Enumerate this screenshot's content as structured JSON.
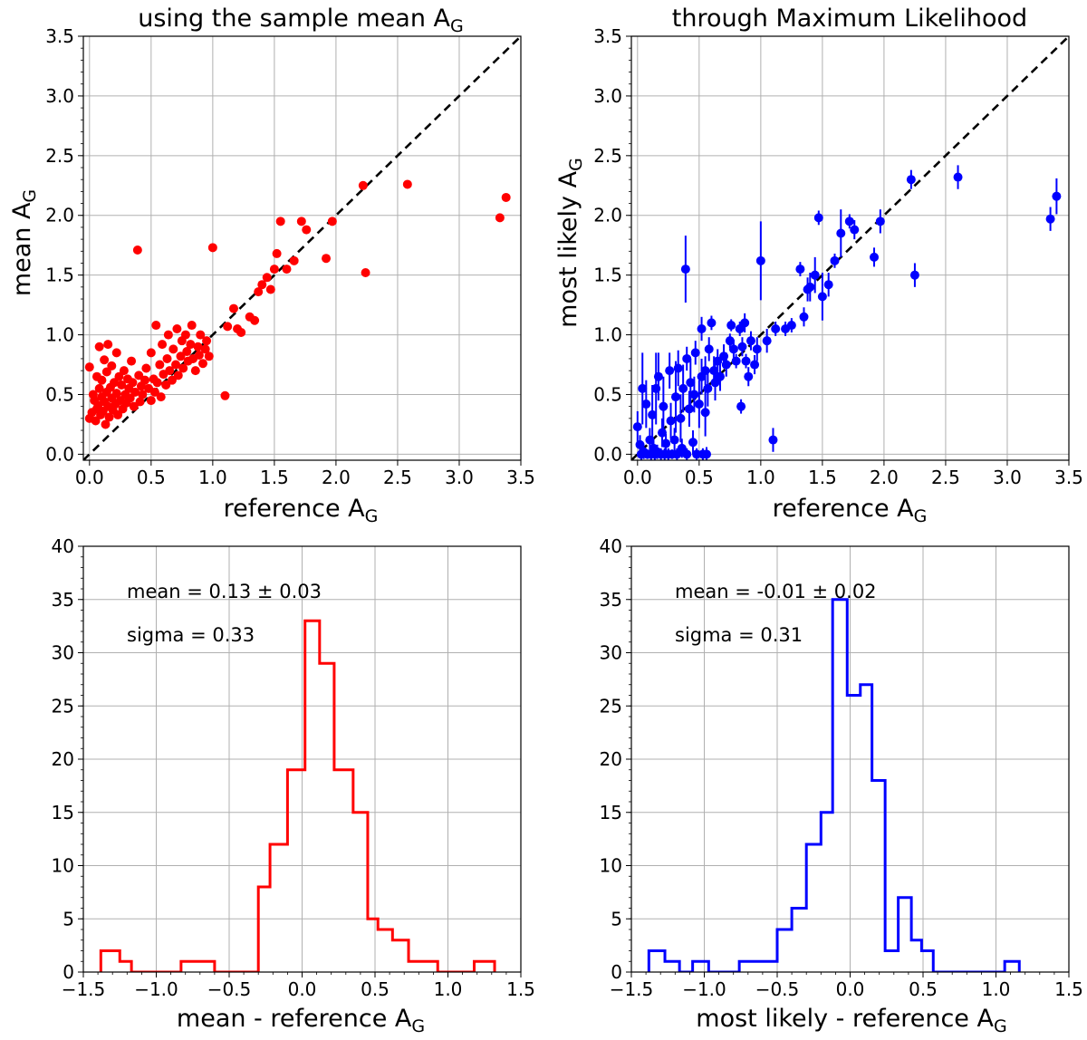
{
  "colors": {
    "red": "#ff0000",
    "blue": "#0000ff",
    "grid": "#b0b0b0"
  },
  "chart_data": [
    {
      "type": "scatter",
      "title": "using the sample mean A",
      "title_sub": "G",
      "xlabel": "reference A",
      "xlabel_sub": "G",
      "ylabel": "mean A",
      "ylabel_sub": "G",
      "xlim": [
        -0.05,
        3.5
      ],
      "ylim": [
        -0.05,
        3.5
      ],
      "xticks": [
        "0.0",
        "0.5",
        "1.0",
        "1.5",
        "2.0",
        "2.5",
        "3.0",
        "3.5"
      ],
      "yticks": [
        "0.0",
        "0.5",
        "1.0",
        "1.5",
        "2.0",
        "2.5",
        "3.0",
        "3.5"
      ],
      "color": "#ff0000",
      "reference_line": "y = x (dashed)",
      "points": [
        [
          0.0,
          0.73
        ],
        [
          0.0,
          0.3
        ],
        [
          0.02,
          0.35
        ],
        [
          0.03,
          0.5
        ],
        [
          0.04,
          0.45
        ],
        [
          0.05,
          0.28
        ],
        [
          0.06,
          0.65
        ],
        [
          0.06,
          0.38
        ],
        [
          0.07,
          0.41
        ],
        [
          0.08,
          0.55
        ],
        [
          0.08,
          0.9
        ],
        [
          0.09,
          0.33
        ],
        [
          0.1,
          0.48
        ],
        [
          0.1,
          0.62
        ],
        [
          0.11,
          0.36
        ],
        [
          0.12,
          0.44
        ],
        [
          0.12,
          0.79
        ],
        [
          0.13,
          0.25
        ],
        [
          0.14,
          0.52
        ],
        [
          0.14,
          0.69
        ],
        [
          0.15,
          0.4
        ],
        [
          0.15,
          0.92
        ],
        [
          0.16,
          0.31
        ],
        [
          0.17,
          0.56
        ],
        [
          0.18,
          0.47
        ],
        [
          0.18,
          0.74
        ],
        [
          0.19,
          0.37
        ],
        [
          0.2,
          0.6
        ],
        [
          0.21,
          0.42
        ],
        [
          0.22,
          0.51
        ],
        [
          0.22,
          0.85
        ],
        [
          0.23,
          0.33
        ],
        [
          0.24,
          0.65
        ],
        [
          0.25,
          0.45
        ],
        [
          0.26,
          0.58
        ],
        [
          0.27,
          0.38
        ],
        [
          0.28,
          0.7
        ],
        [
          0.29,
          0.5
        ],
        [
          0.3,
          0.43
        ],
        [
          0.31,
          0.63
        ],
        [
          0.32,
          0.55
        ],
        [
          0.33,
          0.47
        ],
        [
          0.34,
          0.78
        ],
        [
          0.35,
          0.6
        ],
        [
          0.36,
          0.4
        ],
        [
          0.37,
          0.52
        ],
        [
          0.39,
          1.71
        ],
        [
          0.4,
          0.66
        ],
        [
          0.41,
          0.44
        ],
        [
          0.42,
          0.57
        ],
        [
          0.43,
          0.5
        ],
        [
          0.45,
          0.62
        ],
        [
          0.46,
          0.72
        ],
        [
          0.48,
          0.55
        ],
        [
          0.5,
          0.45
        ],
        [
          0.5,
          0.85
        ],
        [
          0.52,
          0.63
        ],
        [
          0.53,
          0.52
        ],
        [
          0.54,
          1.08
        ],
        [
          0.55,
          0.6
        ],
        [
          0.57,
          0.75
        ],
        [
          0.58,
          0.48
        ],
        [
          0.59,
          0.92
        ],
        [
          0.6,
          0.67
        ],
        [
          0.62,
          0.58
        ],
        [
          0.63,
          0.8
        ],
        [
          0.64,
          1.0
        ],
        [
          0.65,
          0.7
        ],
        [
          0.67,
          0.62
        ],
        [
          0.68,
          0.88
        ],
        [
          0.7,
          0.75
        ],
        [
          0.71,
          1.05
        ],
        [
          0.72,
          0.66
        ],
        [
          0.74,
          0.82
        ],
        [
          0.75,
          0.95
        ],
        [
          0.76,
          0.72
        ],
        [
          0.78,
          1.0
        ],
        [
          0.79,
          0.86
        ],
        [
          0.8,
          0.78
        ],
        [
          0.82,
          0.92
        ],
        [
          0.83,
          1.08
        ],
        [
          0.84,
          0.8
        ],
        [
          0.86,
          0.7
        ],
        [
          0.88,
          0.9
        ],
        [
          0.89,
          0.83
        ],
        [
          0.9,
          1.0
        ],
        [
          0.92,
          0.76
        ],
        [
          0.94,
          0.88
        ],
        [
          0.95,
          0.95
        ],
        [
          0.97,
          0.82
        ],
        [
          1.0,
          1.73
        ],
        [
          1.1,
          0.49
        ],
        [
          1.12,
          1.07
        ],
        [
          1.17,
          1.22
        ],
        [
          1.2,
          1.05
        ],
        [
          1.23,
          1.02
        ],
        [
          1.3,
          1.15
        ],
        [
          1.34,
          1.12
        ],
        [
          1.37,
          1.36
        ],
        [
          1.4,
          1.42
        ],
        [
          1.44,
          1.48
        ],
        [
          1.47,
          1.38
        ],
        [
          1.5,
          1.55
        ],
        [
          1.52,
          1.68
        ],
        [
          1.55,
          1.95
        ],
        [
          1.6,
          1.55
        ],
        [
          1.66,
          1.62
        ],
        [
          1.72,
          1.95
        ],
        [
          1.76,
          1.88
        ],
        [
          1.92,
          1.64
        ],
        [
          1.97,
          1.95
        ],
        [
          2.22,
          2.25
        ],
        [
          2.24,
          1.52
        ],
        [
          2.58,
          2.26
        ],
        [
          3.33,
          1.98
        ],
        [
          3.38,
          2.15
        ]
      ]
    },
    {
      "type": "scatter",
      "title": "through Maximum Likelihood",
      "xlabel": "reference A",
      "xlabel_sub": "G",
      "ylabel": "most likely A",
      "ylabel_sub": "G",
      "xlim": [
        -0.05,
        3.5
      ],
      "ylim": [
        -0.05,
        3.5
      ],
      "xticks": [
        "0.0",
        "0.5",
        "1.0",
        "1.5",
        "2.0",
        "2.5",
        "3.0",
        "3.5"
      ],
      "yticks": [
        "0.0",
        "0.5",
        "1.0",
        "1.5",
        "2.0",
        "2.5",
        "3.0",
        "3.5"
      ],
      "color": "#0000ff",
      "reference_line": "y = x (dashed)",
      "points": [
        [
          0.0,
          0.23,
          0.13
        ],
        [
          0.02,
          0.08,
          0.08
        ],
        [
          0.03,
          0.0,
          0.05
        ],
        [
          0.04,
          0.55,
          0.3
        ],
        [
          0.05,
          0.02,
          0.06
        ],
        [
          0.07,
          0.42,
          0.2
        ],
        [
          0.08,
          0.0,
          0.04
        ],
        [
          0.1,
          0.12,
          0.1
        ],
        [
          0.11,
          0.0,
          0.05
        ],
        [
          0.12,
          0.33,
          0.25
        ],
        [
          0.13,
          0.05,
          0.07
        ],
        [
          0.14,
          0.0,
          0.05
        ],
        [
          0.15,
          0.55,
          0.3
        ],
        [
          0.16,
          0.02,
          0.06
        ],
        [
          0.17,
          0.65,
          0.2
        ],
        [
          0.19,
          0.0,
          0.05
        ],
        [
          0.2,
          0.18,
          0.12
        ],
        [
          0.21,
          0.4,
          0.25
        ],
        [
          0.22,
          0.0,
          0.05
        ],
        [
          0.23,
          0.09,
          0.08
        ],
        [
          0.25,
          0.0,
          0.05
        ],
        [
          0.26,
          0.7,
          0.15
        ],
        [
          0.27,
          0.28,
          0.15
        ],
        [
          0.28,
          0.0,
          0.04
        ],
        [
          0.3,
          0.12,
          0.1
        ],
        [
          0.31,
          0.48,
          0.3
        ],
        [
          0.32,
          0.0,
          0.05
        ],
        [
          0.33,
          0.72,
          0.15
        ],
        [
          0.35,
          0.3,
          0.2
        ],
        [
          0.36,
          0.05,
          0.08
        ],
        [
          0.37,
          0.55,
          0.2
        ],
        [
          0.39,
          1.55,
          0.28
        ],
        [
          0.4,
          0.0,
          0.05
        ],
        [
          0.4,
          0.8,
          0.1
        ],
        [
          0.42,
          0.38,
          0.15
        ],
        [
          0.43,
          0.6,
          0.2
        ],
        [
          0.45,
          0.1,
          0.1
        ],
        [
          0.46,
          0.5,
          0.15
        ],
        [
          0.47,
          0.85,
          0.1
        ],
        [
          0.48,
          0.0,
          0.05
        ],
        [
          0.5,
          0.42,
          0.2
        ],
        [
          0.52,
          0.65,
          0.15
        ],
        [
          0.52,
          1.05,
          0.1
        ],
        [
          0.53,
          0.0,
          0.05
        ],
        [
          0.55,
          0.35,
          0.2
        ],
        [
          0.55,
          0.7,
          0.12
        ],
        [
          0.56,
          0.0,
          0.06
        ],
        [
          0.57,
          0.55,
          0.15
        ],
        [
          0.58,
          0.88,
          0.1
        ],
        [
          0.6,
          1.1,
          0.06
        ],
        [
          0.62,
          0.7,
          0.12
        ],
        [
          0.63,
          0.6,
          0.15
        ],
        [
          0.65,
          0.78,
          0.1
        ],
        [
          0.67,
          0.65,
          0.12
        ],
        [
          0.7,
          0.82,
          0.1
        ],
        [
          0.72,
          0.75,
          0.1
        ],
        [
          0.75,
          0.95,
          0.06
        ],
        [
          0.76,
          1.08,
          0.05
        ],
        [
          0.78,
          0.88,
          0.08
        ],
        [
          0.8,
          0.78,
          0.06
        ],
        [
          0.83,
          1.05,
          0.06
        ],
        [
          0.84,
          0.4,
          0.06
        ],
        [
          0.85,
          0.9,
          0.08
        ],
        [
          0.87,
          1.1,
          0.08
        ],
        [
          0.88,
          0.78,
          0.06
        ],
        [
          0.9,
          0.65,
          0.08
        ],
        [
          0.92,
          0.95,
          0.08
        ],
        [
          0.95,
          0.75,
          0.08
        ],
        [
          0.97,
          0.88,
          0.1
        ],
        [
          1.0,
          1.62,
          0.33
        ],
        [
          1.05,
          0.95,
          0.1
        ],
        [
          1.1,
          0.12,
          0.1
        ],
        [
          1.12,
          1.05,
          0.06
        ],
        [
          1.2,
          1.05,
          0.06
        ],
        [
          1.25,
          1.08,
          0.06
        ],
        [
          1.32,
          1.55,
          0.06
        ],
        [
          1.35,
          1.15,
          0.08
        ],
        [
          1.38,
          1.38,
          0.1
        ],
        [
          1.4,
          1.4,
          0.12
        ],
        [
          1.44,
          1.5,
          0.15
        ],
        [
          1.47,
          1.98,
          0.06
        ],
        [
          1.5,
          1.32,
          0.2
        ],
        [
          1.55,
          1.42,
          0.1
        ],
        [
          1.6,
          1.62,
          0.06
        ],
        [
          1.65,
          1.85,
          0.2
        ],
        [
          1.72,
          1.95,
          0.06
        ],
        [
          1.76,
          1.88,
          0.08
        ],
        [
          1.92,
          1.65,
          0.08
        ],
        [
          1.97,
          1.95,
          0.1
        ],
        [
          2.22,
          2.3,
          0.08
        ],
        [
          2.25,
          1.5,
          0.1
        ],
        [
          2.6,
          2.32,
          0.1
        ],
        [
          3.35,
          1.97,
          0.1
        ],
        [
          3.4,
          2.16,
          0.15
        ]
      ]
    },
    {
      "type": "histogram",
      "xlabel": "mean - reference A",
      "xlabel_sub": "G",
      "xlim": [
        -1.5,
        1.5
      ],
      "ylim": [
        0,
        40
      ],
      "xticks": [
        "−1.5",
        "−1.0",
        "−0.5",
        "0.0",
        "0.5",
        "1.0",
        "1.5"
      ],
      "yticks": [
        "0",
        "5",
        "10",
        "15",
        "20",
        "25",
        "30",
        "35",
        "40"
      ],
      "color": "#ff0000",
      "bin_edges": [
        -1.38,
        -1.25,
        -1.17,
        -1.05,
        -0.83,
        -0.6,
        -0.45,
        -0.3,
        -0.22,
        -0.1,
        0.02,
        0.12,
        0.22,
        0.35,
        0.45,
        0.52,
        0.62,
        0.73,
        0.93,
        1.18,
        1.32
      ],
      "counts": [
        2,
        1,
        0,
        0,
        1,
        0,
        0,
        8,
        12,
        19,
        33,
        29,
        19,
        15,
        5,
        4,
        3,
        1,
        0,
        1
      ],
      "annotations": [
        "mean = 0.13 ± 0.03",
        "sigma = 0.33"
      ]
    },
    {
      "type": "histogram",
      "xlabel": "most likely - reference A",
      "xlabel_sub": "G",
      "xlim": [
        -1.5,
        1.5
      ],
      "ylim": [
        0,
        40
      ],
      "xticks": [
        "−1.5",
        "−1.0",
        "−0.5",
        "0.0",
        "0.5",
        "1.0",
        "1.5"
      ],
      "yticks": [
        "0",
        "5",
        "10",
        "15",
        "20",
        "25",
        "30",
        "35",
        "40"
      ],
      "color": "#0000ff",
      "bin_edges": [
        -1.38,
        -1.27,
        -1.17,
        -1.08,
        -0.97,
        -0.76,
        -0.5,
        -0.4,
        -0.3,
        -0.2,
        -0.12,
        -0.02,
        0.07,
        0.15,
        0.24,
        0.33,
        0.42,
        0.49,
        0.57,
        0.67,
        1.06,
        1.16
      ],
      "counts": [
        2,
        1,
        0,
        1,
        0,
        1,
        4,
        6,
        12,
        15,
        35,
        26,
        27,
        18,
        2,
        7,
        3,
        2,
        0,
        0,
        1
      ],
      "annotations": [
        "mean = -0.01 ± 0.02",
        "sigma = 0.31"
      ]
    }
  ]
}
